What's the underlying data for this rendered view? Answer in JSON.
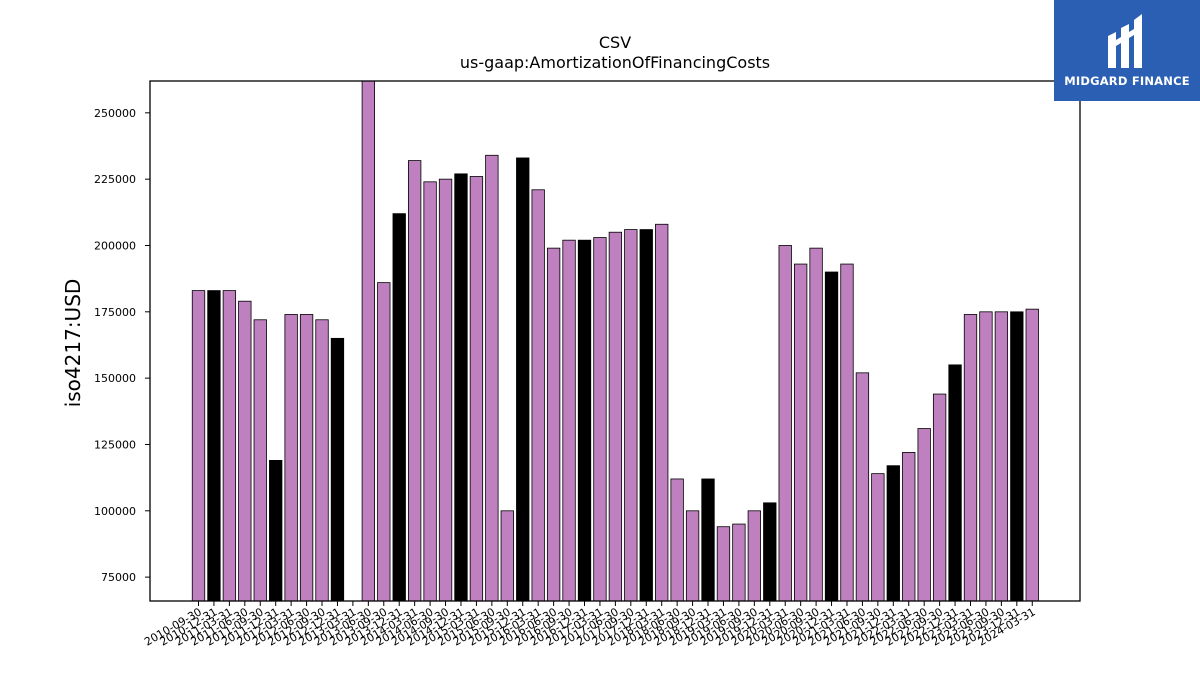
{
  "brand": {
    "name": "MIDGARD FINANCE",
    "bg_color": "#2b5fb4"
  },
  "colors": {
    "bar_default": "#bf80bf",
    "bar_highlight": "#000000",
    "bar_edge": "#000000"
  },
  "chart_data": {
    "type": "bar",
    "title": "CSV",
    "subtitle": "us-gaap:AmortizationOfFinancingCosts",
    "xlabel": "",
    "ylabel": "iso4217:USD",
    "ylim": [
      66000,
      262000
    ],
    "yticks": [
      75000,
      100000,
      125000,
      150000,
      175000,
      200000,
      225000,
      250000
    ],
    "grid": false,
    "categories": [
      "2010-09-30",
      "2010-12-31",
      "2011-03-31",
      "2011-06-30",
      "2011-09-30",
      "2011-12-31",
      "2012-03-31",
      "2012-06-30",
      "2012-09-30",
      "2012-12-31",
      "2013-03-31",
      "2013-06-30",
      "2013-09-30",
      "2013-12-31",
      "2014-03-31",
      "2014-06-30",
      "2014-09-30",
      "2014-12-31",
      "2015-03-31",
      "2015-06-30",
      "2015-09-30",
      "2015-12-31",
      "2016-03-31",
      "2016-06-30",
      "2016-09-30",
      "2016-12-31",
      "2017-03-31",
      "2017-06-30",
      "2017-09-30",
      "2017-12-31",
      "2018-03-31",
      "2018-06-30",
      "2018-09-30",
      "2018-12-31",
      "2019-03-31",
      "2019-06-30",
      "2019-09-30",
      "2019-12-31",
      "2020-03-31",
      "2020-06-30",
      "2020-09-30",
      "2020-12-31",
      "2021-03-31",
      "2021-06-30",
      "2021-09-30",
      "2021-12-31",
      "2022-03-31",
      "2022-06-30",
      "2022-09-30",
      "2022-12-31",
      "2023-03-31",
      "2023-06-30",
      "2023-09-30",
      "2023-12-31",
      "2024-03-31"
    ],
    "values": [
      183000,
      183000,
      183000,
      179000,
      172000,
      119000,
      174000,
      174000,
      172000,
      165000,
      null,
      263000,
      186000,
      212000,
      232000,
      224000,
      225000,
      227000,
      226000,
      234000,
      100000,
      233000,
      221000,
      199000,
      202000,
      202000,
      203000,
      205000,
      206000,
      206000,
      208000,
      112000,
      100000,
      112000,
      94000,
      95000,
      100000,
      103000,
      200000,
      193000,
      199000,
      190000,
      193000,
      152000,
      114000,
      117000,
      122000,
      131000,
      144000,
      155000,
      174000,
      175000,
      175000,
      175000,
      176000
    ],
    "highlighted": [
      1,
      5,
      9,
      13,
      17,
      21,
      25,
      29,
      33,
      37,
      41,
      45,
      49,
      53
    ]
  }
}
